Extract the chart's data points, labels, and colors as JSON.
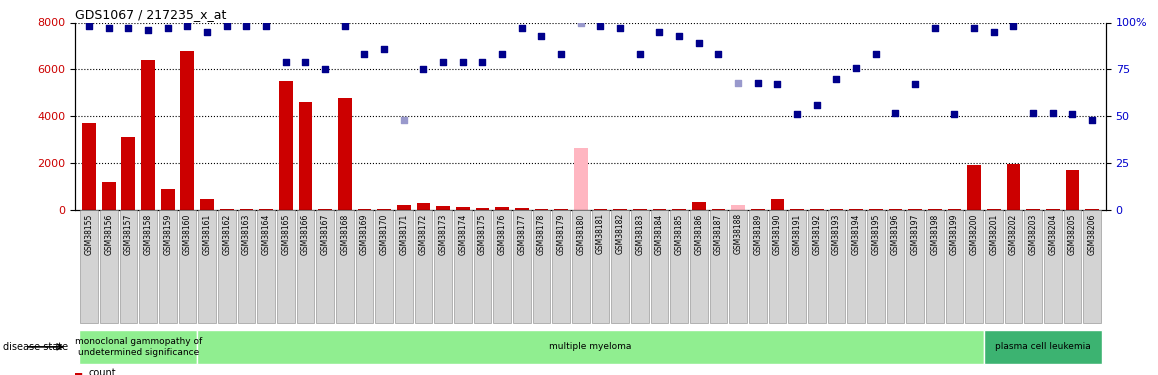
{
  "title": "GDS1067 / 217235_x_at",
  "samples": [
    "GSM38155",
    "GSM38156",
    "GSM38157",
    "GSM38158",
    "GSM38159",
    "GSM38160",
    "GSM38161",
    "GSM38162",
    "GSM38163",
    "GSM38164",
    "GSM38165",
    "GSM38166",
    "GSM38167",
    "GSM38168",
    "GSM38169",
    "GSM38170",
    "GSM38171",
    "GSM38172",
    "GSM38173",
    "GSM38174",
    "GSM38175",
    "GSM38176",
    "GSM38177",
    "GSM38178",
    "GSM38179",
    "GSM38180",
    "GSM38181",
    "GSM38182",
    "GSM38183",
    "GSM38184",
    "GSM38185",
    "GSM38186",
    "GSM38187",
    "GSM38188",
    "GSM38189",
    "GSM38190",
    "GSM38191",
    "GSM38192",
    "GSM38193",
    "GSM38194",
    "GSM38195",
    "GSM38196",
    "GSM38197",
    "GSM38198",
    "GSM38199",
    "GSM38200",
    "GSM38201",
    "GSM38202",
    "GSM38203",
    "GSM38204",
    "GSM38205",
    "GSM38206"
  ],
  "bar_values": [
    3700,
    1200,
    3100,
    6400,
    900,
    6800,
    450,
    50,
    50,
    50,
    5500,
    4600,
    50,
    4800,
    50,
    50,
    200,
    300,
    150,
    120,
    100,
    120,
    100,
    50,
    50,
    2650,
    50,
    50,
    50,
    50,
    50,
    350,
    50,
    200,
    50,
    450,
    50,
    50,
    50,
    50,
    50,
    50,
    50,
    50,
    50,
    1900,
    50,
    1950,
    50,
    50,
    1700,
    50
  ],
  "bar_absent": [
    false,
    false,
    false,
    false,
    false,
    false,
    false,
    false,
    false,
    false,
    false,
    false,
    false,
    false,
    false,
    false,
    false,
    false,
    false,
    false,
    false,
    false,
    false,
    false,
    false,
    true,
    false,
    false,
    false,
    false,
    false,
    false,
    false,
    true,
    false,
    false,
    false,
    false,
    false,
    false,
    false,
    false,
    false,
    false,
    false,
    false,
    false,
    false,
    false,
    false,
    false,
    false
  ],
  "rank_values": [
    98,
    97,
    97,
    96,
    97,
    98,
    95,
    98,
    98,
    98,
    79,
    79,
    75,
    98,
    83,
    86,
    48,
    75,
    79,
    79,
    79,
    83,
    97,
    93,
    83,
    100,
    98,
    97,
    83,
    95,
    93,
    89,
    83,
    68,
    68,
    67,
    51,
    56,
    70,
    76,
    83,
    52,
    67,
    97,
    51,
    97,
    95,
    98,
    52,
    52,
    51,
    48
  ],
  "rank_absent": [
    false,
    false,
    false,
    false,
    false,
    false,
    false,
    false,
    false,
    false,
    false,
    false,
    false,
    false,
    false,
    false,
    true,
    false,
    false,
    false,
    false,
    false,
    false,
    false,
    false,
    true,
    false,
    false,
    false,
    false,
    false,
    false,
    false,
    true,
    false,
    false,
    false,
    false,
    false,
    false,
    false,
    false,
    false,
    false,
    false,
    false,
    false,
    false,
    false,
    false,
    false,
    false
  ],
  "disease_groups": [
    {
      "label": "monoclonal gammopathy of\nundetermined significance",
      "start": 0,
      "end": 5,
      "color": "#90EE90"
    },
    {
      "label": "multiple myeloma",
      "start": 6,
      "end": 45,
      "color": "#90EE90"
    },
    {
      "label": "plasma cell leukemia",
      "start": 46,
      "end": 51,
      "color": "#3CB371"
    }
  ],
  "ylim_left": [
    0,
    8000
  ],
  "ylim_right": [
    0,
    100
  ],
  "yticks_left": [
    0,
    2000,
    4000,
    6000,
    8000
  ],
  "yticks_right": [
    0,
    25,
    50,
    75,
    100
  ],
  "bar_color": "#CC0000",
  "bar_absent_color": "#FFB6C1",
  "rank_color": "#00008B",
  "rank_absent_color": "#9999CC",
  "bg_color": "#FFFFFF"
}
